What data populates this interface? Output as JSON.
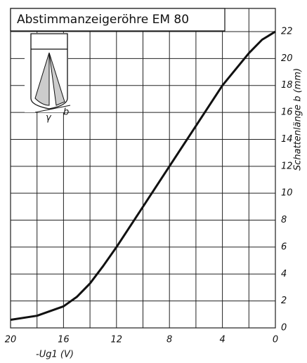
{
  "chart_data": {
    "type": "line",
    "title": "Abstimmanzeigeröhre EM 80",
    "x_label": "-Ug1 (V)",
    "y_label": "Schattenlänge b (mm)",
    "x": [
      20,
      18,
      16,
      15,
      14,
      13,
      12,
      10,
      8,
      6,
      4,
      2,
      1,
      0
    ],
    "y": [
      0.6,
      0.9,
      1.6,
      2.3,
      3.3,
      4.6,
      6,
      9,
      12,
      15,
      18,
      20.4,
      21.4,
      22
    ],
    "color": "#111111",
    "xlim": [
      20,
      0
    ],
    "xticks": [
      20,
      16,
      12,
      8,
      4,
      0
    ],
    "xminorticks": [
      18,
      14,
      10,
      6,
      2
    ],
    "ylim": [
      0,
      22
    ],
    "yticks": [
      0,
      2,
      4,
      6,
      8,
      10,
      12,
      14,
      16,
      18,
      20,
      22
    ],
    "grid": true,
    "inset_labels": [
      "γ",
      "b"
    ]
  }
}
